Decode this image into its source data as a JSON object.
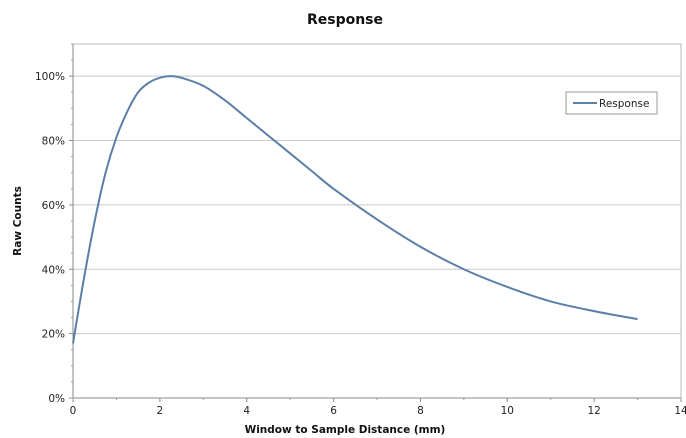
{
  "chart_data": {
    "type": "line",
    "title": "Response",
    "xlabel": "Window to Sample Distance (mm)",
    "ylabel": "Raw Counts",
    "xlim": [
      0,
      14
    ],
    "ylim": [
      0,
      1.1
    ],
    "xticks": [
      0,
      2,
      4,
      6,
      8,
      10,
      12,
      14
    ],
    "xtick_labels": [
      "0",
      "2",
      "4",
      "6",
      "8",
      "10",
      "12",
      "14"
    ],
    "yticks": [
      0,
      0.2,
      0.4,
      0.6,
      0.8,
      1.0
    ],
    "ytick_labels": [
      "0%",
      "20%",
      "40%",
      "60%",
      "80%",
      "100%"
    ],
    "grid": "horizontal",
    "legend": "right",
    "series": [
      {
        "name": "Response",
        "color": "#5b7fa8",
        "x": [
          0,
          0.25,
          0.5,
          0.75,
          1.0,
          1.25,
          1.5,
          1.75,
          2.0,
          2.25,
          2.5,
          3.0,
          3.5,
          4.0,
          4.5,
          5.0,
          5.5,
          6.0,
          7.0,
          8.0,
          9.0,
          10.0,
          11.0,
          12.0,
          13.0
        ],
        "y": [
          0.17,
          0.37,
          0.55,
          0.7,
          0.81,
          0.89,
          0.95,
          0.98,
          0.995,
          1.0,
          0.995,
          0.97,
          0.925,
          0.87,
          0.815,
          0.76,
          0.705,
          0.65,
          0.555,
          0.47,
          0.4,
          0.345,
          0.3,
          0.27,
          0.245
        ]
      }
    ]
  }
}
